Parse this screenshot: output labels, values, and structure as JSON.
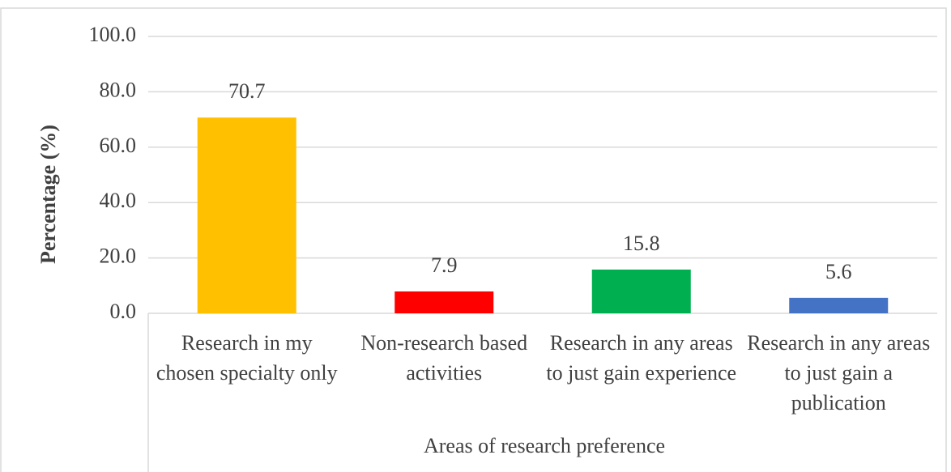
{
  "chart_data": {
    "type": "bar",
    "categories": [
      "Research in my chosen specialty only",
      "Non-research based activities",
      "Research in any areas to just gain experience",
      "Research in any areas to just gain a publication"
    ],
    "values": [
      70.7,
      7.9,
      15.8,
      5.6
    ],
    "colors": [
      "#FFC000",
      "#FF0000",
      "#00B050",
      "#4472C4"
    ],
    "ylim": [
      0,
      100
    ],
    "yticks": [
      {
        "value": 0,
        "label": "0.0"
      },
      {
        "value": 20,
        "label": "20.0"
      },
      {
        "value": 40,
        "label": "40.0"
      },
      {
        "value": 60,
        "label": "60.0"
      },
      {
        "value": 80,
        "label": "80.0"
      },
      {
        "value": 100,
        "label": "100.0"
      }
    ],
    "ylabel": "Percentage (%)",
    "xlabel": "Areas of research preference",
    "grid": true
  }
}
